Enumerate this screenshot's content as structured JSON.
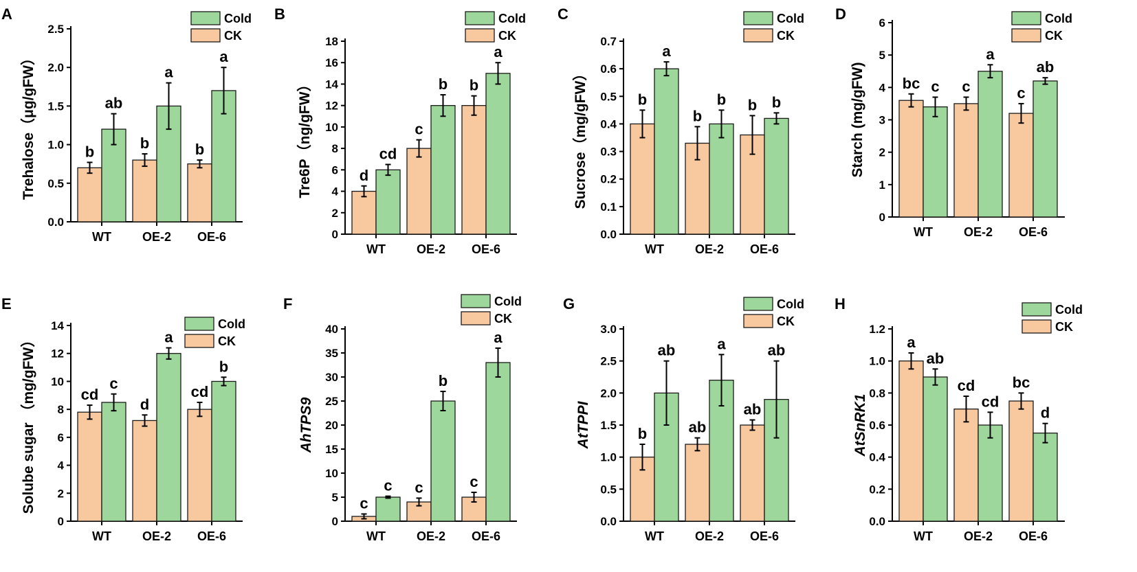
{
  "colors": {
    "ck": "#F8C99E",
    "cold": "#9ED79B",
    "stroke": "#1a1a1a"
  },
  "legend": {
    "cold_label": "Cold",
    "ck_label": "CK"
  },
  "chart_data": [
    {
      "type": "bar",
      "panel": "A",
      "ylabel": "Trehalose〈μg/gFW〉",
      "ylabel_display": "Trehalose（μg/gFW）",
      "categories": [
        "WT",
        "OE-2",
        "OE-6"
      ],
      "ylim": [
        0,
        2.5
      ],
      "yticks": [
        "0.0",
        "0.5",
        "1.0",
        "1.5",
        "2.0",
        "2.5"
      ],
      "series": [
        {
          "name": "CK",
          "values": [
            0.7,
            0.8,
            0.75
          ],
          "errors": [
            0.07,
            0.08,
            0.05
          ],
          "letters": [
            "b",
            "b",
            "b"
          ]
        },
        {
          "name": "Cold",
          "values": [
            1.2,
            1.5,
            1.7
          ],
          "errors": [
            0.2,
            0.3,
            0.3
          ],
          "letters": [
            "ab",
            "a",
            "a"
          ]
        }
      ]
    },
    {
      "type": "bar",
      "panel": "B",
      "ylabel_display": "Tre6P（ng/gFW）",
      "categories": [
        "WT",
        "OE-2",
        "OE-6"
      ],
      "ylim": [
        0,
        18
      ],
      "yticks": [
        "0",
        "2",
        "4",
        "6",
        "8",
        "10",
        "12",
        "14",
        "16",
        "18"
      ],
      "series": [
        {
          "name": "CK",
          "values": [
            4,
            8,
            12
          ],
          "errors": [
            0.5,
            0.8,
            0.9
          ],
          "letters": [
            "d",
            "c",
            "b"
          ]
        },
        {
          "name": "Cold",
          "values": [
            6,
            12,
            15
          ],
          "errors": [
            0.5,
            1.0,
            1.0
          ],
          "letters": [
            "cd",
            "b",
            "a"
          ]
        }
      ]
    },
    {
      "type": "bar",
      "panel": "C",
      "ylabel_display": "Sucrose（mg/gFW）",
      "categories": [
        "WT",
        "OE-2",
        "OE-6"
      ],
      "ylim": [
        0,
        0.7
      ],
      "yticks": [
        "0.0",
        "0.1",
        "0.2",
        "0.3",
        "0.4",
        "0.5",
        "0.6",
        "0.7"
      ],
      "series": [
        {
          "name": "CK",
          "values": [
            0.4,
            0.33,
            0.36
          ],
          "errors": [
            0.05,
            0.06,
            0.07
          ],
          "letters": [
            "b",
            "b",
            "b"
          ]
        },
        {
          "name": "Cold",
          "values": [
            0.6,
            0.4,
            0.42
          ],
          "errors": [
            0.025,
            0.05,
            0.02
          ],
          "letters": [
            "a",
            "b",
            "b"
          ]
        }
      ]
    },
    {
      "type": "bar",
      "panel": "D",
      "ylabel_display": "Starch (mg/gFW)",
      "categories": [
        "WT",
        "OE-2",
        "OE-6"
      ],
      "ylim": [
        0,
        6
      ],
      "yticks": [
        "0",
        "1",
        "2",
        "3",
        "4",
        "5",
        "6"
      ],
      "series": [
        {
          "name": "CK",
          "values": [
            3.6,
            3.5,
            3.2
          ],
          "errors": [
            0.2,
            0.2,
            0.3
          ],
          "letters": [
            "bc",
            "c",
            "c"
          ]
        },
        {
          "name": "Cold",
          "values": [
            3.4,
            4.5,
            4.2
          ],
          "errors": [
            0.3,
            0.2,
            0.1
          ],
          "letters": [
            "c",
            "a",
            "ab"
          ]
        }
      ]
    },
    {
      "type": "bar",
      "panel": "E",
      "ylabel_display": "Solube sugar （mg/gFW）",
      "categories": [
        "WT",
        "OE-2",
        "OE-6"
      ],
      "ylim": [
        0,
        14
      ],
      "yticks": [
        "0",
        "2",
        "4",
        "6",
        "8",
        "10",
        "12",
        "14"
      ],
      "series": [
        {
          "name": "CK",
          "values": [
            7.8,
            7.2,
            8.0
          ],
          "errors": [
            0.5,
            0.4,
            0.5
          ],
          "letters": [
            "cd",
            "d",
            "cd"
          ]
        },
        {
          "name": "Cold",
          "values": [
            8.5,
            12.0,
            10.0
          ],
          "errors": [
            0.6,
            0.4,
            0.3
          ],
          "letters": [
            "c",
            "a",
            "b"
          ]
        }
      ]
    },
    {
      "type": "bar",
      "panel": "F",
      "ylabel_display": "AhTPS9",
      "ylabel_italic": true,
      "categories": [
        "WT",
        "OE-2",
        "OE-6"
      ],
      "ylim": [
        0,
        40
      ],
      "yticks": [
        "0",
        "5",
        "10",
        "15",
        "20",
        "25",
        "30",
        "35",
        "40"
      ],
      "series": [
        {
          "name": "CK",
          "values": [
            1,
            4,
            5
          ],
          "errors": [
            0.5,
            0.8,
            1.0
          ],
          "letters": [
            "c",
            "c",
            "c"
          ]
        },
        {
          "name": "Cold",
          "values": [
            5,
            25,
            33
          ],
          "errors": [
            0.2,
            2.0,
            3.0
          ],
          "letters": [
            "c",
            "b",
            "a"
          ]
        }
      ]
    },
    {
      "type": "bar",
      "panel": "G",
      "ylabel_display": "AtTPPI",
      "ylabel_italic": true,
      "categories": [
        "WT",
        "OE-2",
        "OE-6"
      ],
      "ylim": [
        0,
        3.0
      ],
      "yticks": [
        "0.0",
        "0.5",
        "1.0",
        "1.5",
        "2.0",
        "2.5",
        "3.0"
      ],
      "series": [
        {
          "name": "CK",
          "values": [
            1.0,
            1.2,
            1.5
          ],
          "errors": [
            0.2,
            0.1,
            0.08
          ],
          "letters": [
            "b",
            "ab",
            "ab"
          ]
        },
        {
          "name": "Cold",
          "values": [
            2.0,
            2.2,
            1.9
          ],
          "errors": [
            0.5,
            0.4,
            0.6
          ],
          "letters": [
            "ab",
            "a",
            "ab"
          ]
        }
      ]
    },
    {
      "type": "bar",
      "panel": "H",
      "ylabel_display": "AtSnRK1",
      "ylabel_italic": true,
      "categories": [
        "WT",
        "OE-2",
        "OE-6"
      ],
      "ylim": [
        0,
        1.2
      ],
      "yticks": [
        "0.0",
        "0.2",
        "0.4",
        "0.6",
        "0.8",
        "1.0",
        "1.2"
      ],
      "series": [
        {
          "name": "CK",
          "values": [
            1.0,
            0.7,
            0.75
          ],
          "errors": [
            0.05,
            0.08,
            0.05
          ],
          "letters": [
            "a",
            "cd",
            "bc"
          ]
        },
        {
          "name": "Cold",
          "values": [
            0.9,
            0.6,
            0.55
          ],
          "errors": [
            0.05,
            0.08,
            0.06
          ],
          "letters": [
            "ab",
            "cd",
            "d"
          ]
        }
      ]
    }
  ]
}
